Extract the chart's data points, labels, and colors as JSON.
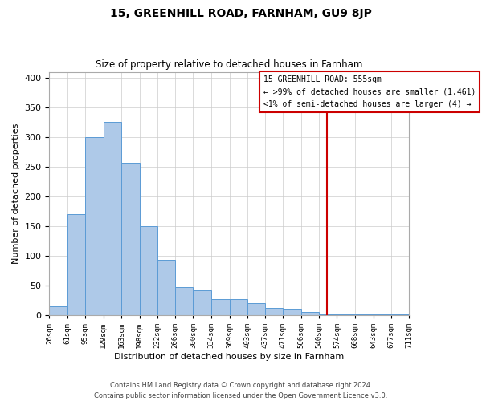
{
  "title": "15, GREENHILL ROAD, FARNHAM, GU9 8JP",
  "subtitle": "Size of property relative to detached houses in Farnham",
  "xlabel": "Distribution of detached houses by size in Farnham",
  "ylabel": "Number of detached properties",
  "bar_color": "#aec9e8",
  "bar_edge_color": "#5b9bd5",
  "highlight_color": "#dce8f5",
  "bins": [
    26,
    61,
    95,
    129,
    163,
    198,
    232,
    266,
    300,
    334,
    369,
    403,
    437,
    471,
    506,
    540,
    574,
    608,
    643,
    677,
    711
  ],
  "counts": [
    15,
    170,
    300,
    326,
    257,
    150,
    93,
    48,
    42,
    27,
    27,
    20,
    13,
    11,
    5,
    1,
    2,
    1,
    1,
    1
  ],
  "tick_labels": [
    "26sqm",
    "61sqm",
    "95sqm",
    "129sqm",
    "163sqm",
    "198sqm",
    "232sqm",
    "266sqm",
    "300sqm",
    "334sqm",
    "369sqm",
    "403sqm",
    "437sqm",
    "471sqm",
    "506sqm",
    "540sqm",
    "574sqm",
    "608sqm",
    "643sqm",
    "677sqm",
    "711sqm"
  ],
  "property_line_x": 555,
  "property_line_color": "#cc0000",
  "legend_title": "15 GREENHILL ROAD: 555sqm",
  "legend_line1": "← >99% of detached houses are smaller (1,461)",
  "legend_line2": "<1% of semi-detached houses are larger (4) →",
  "ylim": [
    0,
    410
  ],
  "yticks": [
    0,
    50,
    100,
    150,
    200,
    250,
    300,
    350,
    400
  ],
  "footer_line1": "Contains HM Land Registry data © Crown copyright and database right 2024.",
  "footer_line2": "Contains public sector information licensed under the Open Government Licence v3.0.",
  "grid_color": "#cccccc",
  "background_color": "#ffffff"
}
